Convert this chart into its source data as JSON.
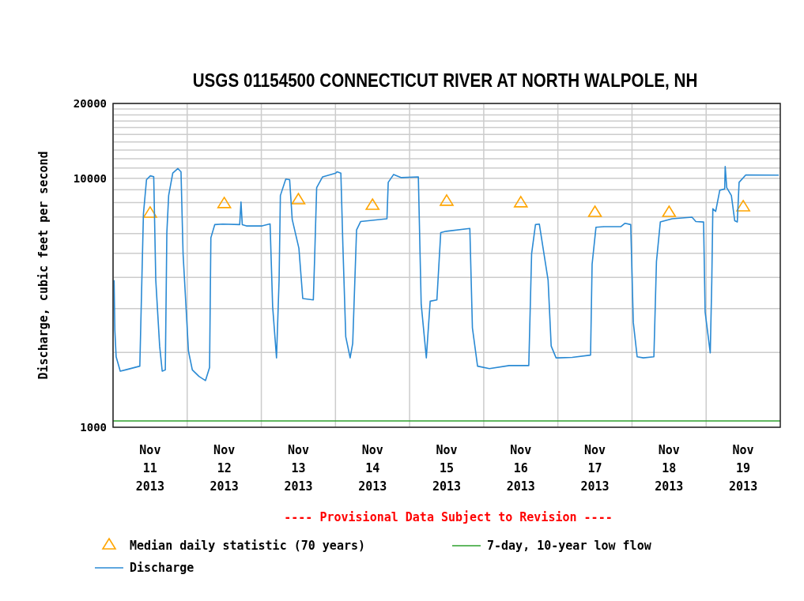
{
  "chart_data": {
    "type": "line",
    "title": "USGS 01154500 CONNECTICUT RIVER AT NORTH WALPOLE, NH",
    "ylabel": "Discharge, cubic feet per second",
    "log": true,
    "grid": true,
    "legend": "bottom",
    "xlim": [
      "2013-11-11T00:00",
      "2013-11-20T00:00"
    ],
    "xticks": [
      {
        "value": "2013-11-11T00:00",
        "label": null
      },
      {
        "value": "2013-11-11T12:00",
        "label": "Nov\n11\n2013"
      },
      {
        "value": "2013-11-12T00:00",
        "label": null
      },
      {
        "value": "2013-11-12T12:00",
        "label": "Nov\n12\n2013"
      },
      {
        "value": "2013-11-13T00:00",
        "label": null
      },
      {
        "value": "2013-11-13T12:00",
        "label": "Nov\n13\n2013"
      },
      {
        "value": "2013-11-14T00:00",
        "label": null
      },
      {
        "value": "2013-11-14T12:00",
        "label": "Nov\n14\n2013"
      },
      {
        "value": "2013-11-15T00:00",
        "label": null
      },
      {
        "value": "2013-11-15T12:00",
        "label": "Nov\n15\n2013"
      },
      {
        "value": "2013-11-16T00:00",
        "label": null
      },
      {
        "value": "2013-11-16T12:00",
        "label": "Nov\n16\n2013"
      },
      {
        "value": "2013-11-17T00:00",
        "label": null
      },
      {
        "value": "2013-11-17T12:00",
        "label": "Nov\n17\n2013"
      },
      {
        "value": "2013-11-18T00:00",
        "label": null
      },
      {
        "value": "2013-11-18T12:00",
        "label": "Nov\n18\n2013"
      },
      {
        "value": "2013-11-19T00:00",
        "label": null
      },
      {
        "value": "2013-11-19T12:00",
        "label": "Nov\n19\n2013"
      }
    ],
    "ylim": [
      1000,
      20000
    ],
    "yticks": [
      1000,
      {
        "value": 2000,
        "label": null
      },
      {
        "value": 3000,
        "label": null
      },
      {
        "value": 4000,
        "label": null
      },
      {
        "value": 5000,
        "label": null
      },
      {
        "value": 6000,
        "label": null
      },
      {
        "value": 7000,
        "label": null
      },
      {
        "value": 8000,
        "label": null
      },
      {
        "value": 9000,
        "label": null
      },
      10000,
      {
        "value": 11000,
        "label": null
      },
      {
        "value": 12000,
        "label": null
      },
      {
        "value": 13000,
        "label": null
      },
      {
        "value": 14000,
        "label": null
      },
      {
        "value": 15000,
        "label": null
      },
      {
        "value": 16000,
        "label": null
      },
      {
        "value": 17000,
        "label": null
      },
      {
        "value": 18000,
        "label": null
      },
      {
        "value": 19000,
        "label": null
      },
      20000
    ],
    "ref_lines": [
      {
        "axis": "y",
        "value": 1060,
        "label": "7-day, 10-year low flow",
        "color": "#2ca02c",
        "line_style": "solid"
      }
    ],
    "annotations": [
      "---- Provisional Data Subject to Revision ----"
    ],
    "series": [
      {
        "name": "Median daily statistic (70 years)",
        "type": "scatter",
        "marker": "triangle",
        "color": "#ffa500",
        "x": [
          "2013-11-11T12:00",
          "2013-11-12T12:00",
          "2013-11-13T12:00",
          "2013-11-14T12:00",
          "2013-11-15T12:00",
          "2013-11-16T12:00",
          "2013-11-17T12:00",
          "2013-11-18T12:00",
          "2013-11-19T12:00"
        ],
        "values": [
          7300,
          7970,
          8260,
          7850,
          8150,
          8030,
          7350,
          7350,
          7740
        ]
      },
      {
        "name": "Discharge",
        "marker": "none",
        "line_style": "solid",
        "color": "#2a8ad4",
        "x": [
          "2013-11-11T00:20",
          "2013-11-11T00:35",
          "2013-11-11T01:00",
          "2013-11-11T02:20",
          "2013-11-11T04:00",
          "2013-11-11T08:40",
          "2013-11-11T09:05",
          "2013-11-11T09:50",
          "2013-11-11T10:50",
          "2013-11-11T12:05",
          "2013-11-11T13:10",
          "2013-11-11T13:50",
          "2013-11-11T15:05",
          "2013-11-11T15:55",
          "2013-11-11T16:55",
          "2013-11-11T17:25",
          "2013-11-11T18:00",
          "2013-11-11T19:20",
          "2013-11-11T21:00",
          "2013-11-11T22:00",
          "2013-11-11T22:40",
          "2013-11-12T00:25",
          "2013-11-12T01:40",
          "2013-11-12T03:50",
          "2013-11-12T05:55",
          "2013-11-12T07:15",
          "2013-11-12T07:40",
          "2013-11-12T08:55",
          "2013-11-12T11:30",
          "2013-11-12T17:00",
          "2013-11-12T17:25",
          "2013-11-12T17:50",
          "2013-11-12T19:10",
          "2013-11-13T00:15",
          "2013-11-13T02:50",
          "2013-11-13T03:40",
          "2013-11-13T04:55",
          "2013-11-13T05:45",
          "2013-11-13T06:10",
          "2013-11-13T07:55",
          "2013-11-13T09:10",
          "2013-11-13T10:00",
          "2013-11-13T12:10",
          "2013-11-13T13:25",
          "2013-11-13T16:50",
          "2013-11-13T17:15",
          "2013-11-13T17:55",
          "2013-11-13T19:50",
          "2013-11-14T00:05",
          "2013-11-14T00:30",
          "2013-11-14T01:45",
          "2013-11-14T02:25",
          "2013-11-14T03:20",
          "2013-11-14T04:45",
          "2013-11-14T05:35",
          "2013-11-14T06:50",
          "2013-11-14T08:10",
          "2013-11-14T16:40",
          "2013-11-14T17:05",
          "2013-11-14T18:50",
          "2013-11-14T21:20",
          "2013-11-15T02:50",
          "2013-11-15T03:45",
          "2013-11-15T05:25",
          "2013-11-15T06:40",
          "2013-11-15T08:50",
          "2013-11-15T10:05",
          "2013-11-15T11:50",
          "2013-11-15T19:30",
          "2013-11-15T20:20",
          "2013-11-15T22:00",
          "2013-11-16T01:50",
          "2013-11-16T08:15",
          "2013-11-16T14:35",
          "2013-11-16T15:30",
          "2013-11-16T16:45",
          "2013-11-16T18:00",
          "2013-11-16T20:50",
          "2013-11-16T21:50",
          "2013-11-16T23:25",
          "2013-11-17T00:15",
          "2013-11-17T04:40",
          "2013-11-17T10:35",
          "2013-11-17T11:05",
          "2013-11-17T12:20",
          "2013-11-17T14:55",
          "2013-11-17T20:25",
          "2013-11-17T21:45",
          "2013-11-17T23:35",
          "2013-11-18T00:25",
          "2013-11-18T01:40",
          "2013-11-18T03:40",
          "2013-11-18T07:05",
          "2013-11-18T07:55",
          "2013-11-18T09:10",
          "2013-11-18T13:00",
          "2013-11-18T19:25",
          "2013-11-18T20:40",
          "2013-11-18T23:10",
          "2013-11-18T23:40",
          "2013-11-19T01:20",
          "2013-11-19T01:50",
          "2013-11-19T02:10",
          "2013-11-19T03:05",
          "2013-11-19T04:25",
          "2013-11-19T06:00",
          "2013-11-19T06:10",
          "2013-11-19T06:40",
          "2013-11-19T08:10",
          "2013-11-19T09:15",
          "2013-11-19T10:05",
          "2013-11-19T10:40",
          "2013-11-19T12:50",
          "2013-11-19T23:30"
        ],
        "values": [
          3900,
          2450,
          1920,
          1680,
          1700,
          1760,
          2920,
          7190,
          9880,
          10240,
          10150,
          3900,
          2120,
          1680,
          1700,
          6060,
          8530,
          10500,
          10950,
          10630,
          4980,
          2020,
          1700,
          1600,
          1540,
          1740,
          5770,
          6520,
          6550,
          6520,
          8030,
          6520,
          6440,
          6440,
          6560,
          3050,
          1900,
          3900,
          8530,
          9930,
          9880,
          6840,
          5240,
          3290,
          3250,
          4740,
          9180,
          10140,
          10500,
          10630,
          10500,
          5300,
          2310,
          1900,
          2170,
          6210,
          6710,
          6880,
          9640,
          10370,
          10070,
          10140,
          3130,
          1900,
          3210,
          3250,
          6060,
          6130,
          6290,
          2510,
          1760,
          1720,
          1770,
          1770,
          4980,
          6520,
          6550,
          3900,
          2120,
          1900,
          1900,
          1910,
          1950,
          4520,
          6360,
          6400,
          6400,
          6600,
          6520,
          2640,
          1920,
          1900,
          1920,
          4630,
          6680,
          6880,
          6980,
          6710,
          6680,
          2910,
          1990,
          3900,
          7550,
          7370,
          8960,
          9070,
          11160,
          9180,
          8530,
          6760,
          6680,
          9640,
          10320,
          10300
        ]
      }
    ]
  }
}
